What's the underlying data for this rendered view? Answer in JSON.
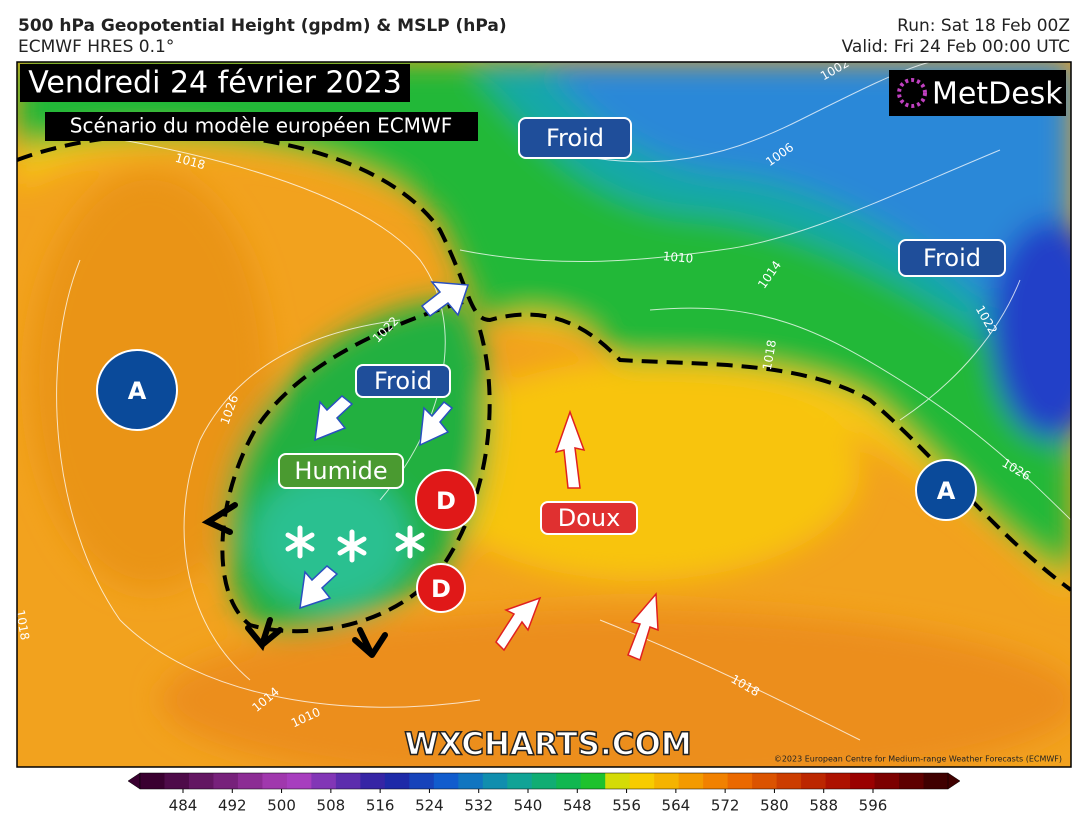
{
  "header": {
    "title": "500 hPa Geopotential Height (gpdm) & MSLP (hPa)",
    "subtitle": "ECMWF HRES 0.1°",
    "run": "Run: Sat 18 Feb 00Z",
    "valid": "Valid: Fri 24 Feb 00:00 UTC"
  },
  "overlay": {
    "date": "Vendredi 24 février 2023",
    "scenario": "Scénario du modèle européen ECMWF",
    "logo": "MetDesk",
    "watermark": "WXCHARTS.COM",
    "copyright": "©2023 European Centre for Medium-range Weather Forecasts (ECMWF)"
  },
  "labels": [
    "Froid",
    "Froid",
    "Froid",
    "Humide",
    "Doux",
    "A",
    "A",
    "D",
    "D"
  ],
  "isobar_labels": [
    "1018",
    "1022",
    "1026",
    "1010",
    "1014",
    "1006",
    "1002",
    "1022",
    "1026",
    "1018",
    "1018",
    "1014",
    "1010",
    "1018"
  ],
  "colorbar": {
    "ticks": [
      484,
      492,
      500,
      508,
      516,
      524,
      532,
      540,
      548,
      556,
      564,
      572,
      580,
      588,
      596
    ]
  }
}
